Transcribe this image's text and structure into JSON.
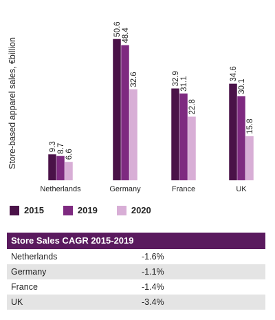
{
  "chart_data": {
    "type": "bar",
    "ylabel": "Store-based apparel sales, €billion",
    "categories": [
      "Netherlands",
      "Germany",
      "France",
      "UK"
    ],
    "series": [
      {
        "name": "2015",
        "values": [
          9.3,
          50.6,
          32.9,
          34.6
        ]
      },
      {
        "name": "2019",
        "values": [
          8.7,
          48.4,
          31.1,
          30.1
        ]
      },
      {
        "name": "2020",
        "values": [
          6.6,
          32.6,
          22.8,
          15.8
        ]
      }
    ],
    "value_labels": [
      [
        "9.3",
        "50.6",
        "32.9",
        "34.6"
      ],
      [
        "8.7",
        "48.4",
        "31.1",
        "30.1"
      ],
      [
        "6.6",
        "32.6",
        "22.8",
        "15.8"
      ]
    ],
    "ylim": [
      0,
      60
    ],
    "colors": [
      "#4a1248",
      "#7e2a80",
      "#d8aed6"
    ],
    "legend_position": "bottom-left",
    "grid": false
  },
  "cagr_table": {
    "title": "Store Sales CAGR 2015-2019",
    "rows": [
      {
        "country": "Netherlands",
        "value": "-1.6%"
      },
      {
        "country": "Germany",
        "value": "-1.1%"
      },
      {
        "country": "France",
        "value": "-1.4%"
      },
      {
        "country": "UK",
        "value": "-3.4%"
      }
    ]
  }
}
